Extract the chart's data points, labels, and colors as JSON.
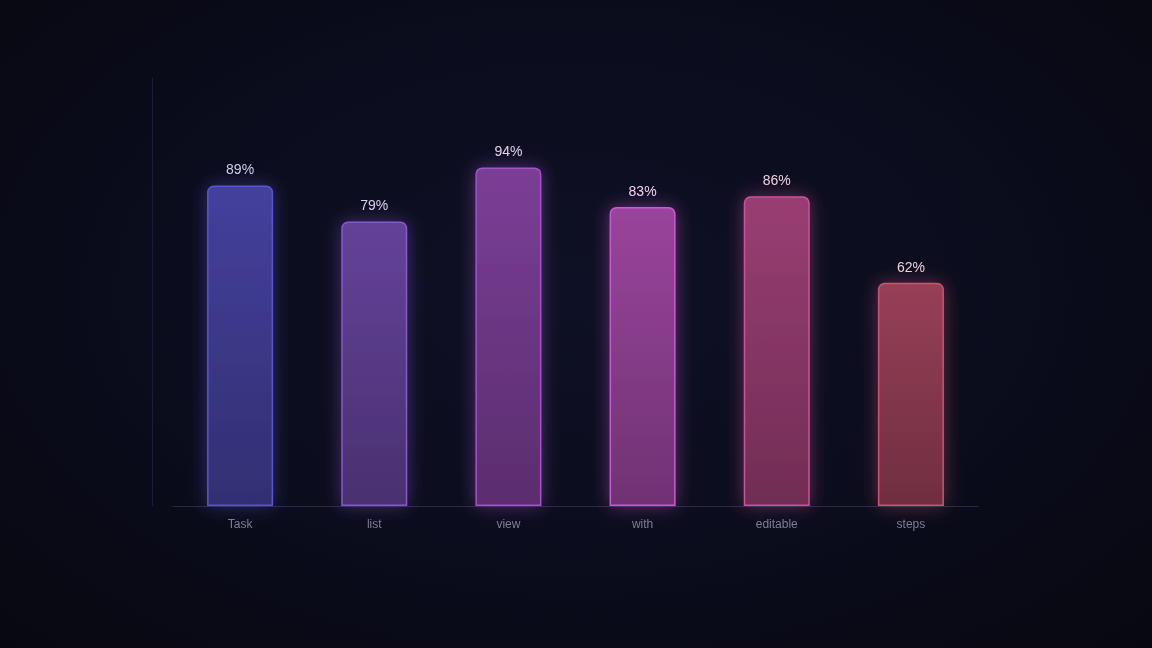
{
  "chart_data": {
    "type": "bar",
    "categories": [
      "Task",
      "list",
      "view",
      "with",
      "editable",
      "steps"
    ],
    "values": [
      89,
      79,
      94,
      83,
      86,
      62
    ],
    "value_labels": [
      "89%",
      "79%",
      "94%",
      "83%",
      "86%",
      "62%"
    ],
    "colors": [
      "#5a55d0",
      "#8558cc",
      "#a452c8",
      "#cc5ad0",
      "#cc5299",
      "#c95474"
    ]
  }
}
